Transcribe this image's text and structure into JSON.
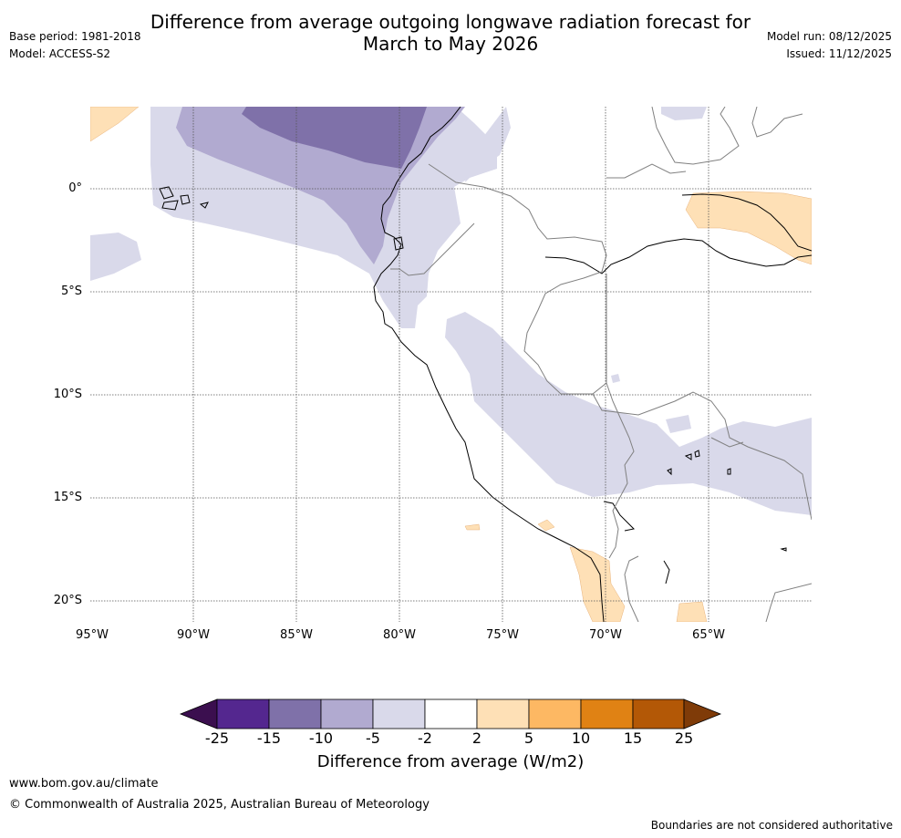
{
  "header": {
    "title_line1": "Difference from average outgoing longwave radiation forecast for",
    "title_line2": "March to May 2026",
    "base_period": "Base period: 1981-2018",
    "model": "Model: ACCESS-S2",
    "model_run": "Model run: 08/12/2025",
    "issued": "Issued: 11/12/2025"
  },
  "map": {
    "lat_labels": [
      "0°",
      "5°S",
      "10°S",
      "15°S",
      "20°S"
    ],
    "lon_labels": [
      "95°W",
      "90°W",
      "85°W",
      "80°W",
      "75°W",
      "70°W",
      "65°W"
    ]
  },
  "colorbar": {
    "ticks": [
      "-25",
      "-15",
      "-10",
      "-5",
      "-2",
      "2",
      "5",
      "10",
      "15",
      "25"
    ],
    "title": "Difference from average (W/m2)",
    "colors": {
      "below_-25": "#3b0f4f",
      "-25_-15": "#54278f",
      "-15_-10": "#7f71a9",
      "-10_-5": "#b1aad0",
      "-5_-2": "#d9d9ea",
      "-2_2": "#ffffff",
      "2_5": "#fee0b6",
      "5_10": "#fdb863",
      "10_15": "#e08214",
      "15_25": "#b35806",
      "above_25": "#7f3b08"
    }
  },
  "footer": {
    "website": "www.bom.gov.au/climate",
    "copyright": "© Commonwealth of Australia 2025, Australian Bureau of Meteorology",
    "note": "Boundaries are not considered authoritative"
  }
}
